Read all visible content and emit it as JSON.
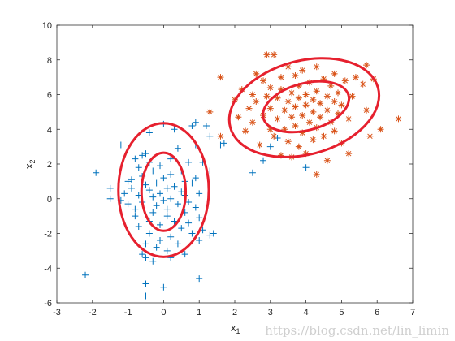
{
  "chart_data": {
    "type": "scatter",
    "title": "",
    "xlabel": "x",
    "xlabel_sub": "1",
    "ylabel": "x",
    "ylabel_sub": "2",
    "xlim": [
      -3,
      7
    ],
    "ylim": [
      -6,
      10
    ],
    "x_ticks": [
      -3,
      -2,
      -1,
      0,
      1,
      2,
      3,
      4,
      5,
      6,
      7
    ],
    "y_ticks": [
      -6,
      -4,
      -2,
      0,
      2,
      4,
      6,
      8,
      10
    ],
    "grid": false,
    "legend": "none",
    "series": [
      {
        "marker": "plus",
        "color": "#0072BD",
        "points": [
          [
            -2.2,
            -4.4
          ],
          [
            -1.9,
            1.5
          ],
          [
            -1.5,
            0.6
          ],
          [
            -1.5,
            0.0
          ],
          [
            -1.2,
            3.1
          ],
          [
            -1.2,
            -0.1
          ],
          [
            -1.1,
            0.3
          ],
          [
            -1.0,
            1.0
          ],
          [
            -1.0,
            -0.3
          ],
          [
            -0.9,
            1.1
          ],
          [
            -0.9,
            0.6
          ],
          [
            -0.8,
            2.3
          ],
          [
            -0.8,
            -0.6
          ],
          [
            -0.8,
            -1.0
          ],
          [
            -0.7,
            1.8
          ],
          [
            -0.7,
            0.2
          ],
          [
            -0.7,
            -1.6
          ],
          [
            -0.6,
            2.5
          ],
          [
            -0.6,
            1.3
          ],
          [
            -0.6,
            -0.2
          ],
          [
            -0.6,
            -3.2
          ],
          [
            -0.5,
            2.6
          ],
          [
            -0.5,
            0.8
          ],
          [
            -0.5,
            -2.6
          ],
          [
            -0.5,
            -3.4
          ],
          [
            -0.5,
            -4.9
          ],
          [
            -0.5,
            -5.6
          ],
          [
            -0.4,
            3.8
          ],
          [
            -0.4,
            2.1
          ],
          [
            -0.4,
            0.5
          ],
          [
            -0.4,
            -1.3
          ],
          [
            -0.4,
            -2.0
          ],
          [
            -0.3,
            1.6
          ],
          [
            -0.3,
            0.1
          ],
          [
            -0.3,
            -0.8
          ],
          [
            -0.3,
            -3.6
          ],
          [
            -0.2,
            0.9
          ],
          [
            -0.2,
            -0.4
          ],
          [
            -0.2,
            -2.8
          ],
          [
            -0.1,
            1.9
          ],
          [
            -0.1,
            0.3
          ],
          [
            -0.1,
            -1.5
          ],
          [
            -0.1,
            -2.4
          ],
          [
            0.0,
            4.3
          ],
          [
            0.0,
            1.2
          ],
          [
            0.0,
            -0.1
          ],
          [
            0.0,
            -5.1
          ],
          [
            0.1,
            0.6
          ],
          [
            0.1,
            -0.6
          ],
          [
            0.1,
            -1.0
          ],
          [
            0.1,
            -3.0
          ],
          [
            0.2,
            2.3
          ],
          [
            0.2,
            1.4
          ],
          [
            0.2,
            0.0
          ],
          [
            0.2,
            -2.2
          ],
          [
            0.2,
            -3.4
          ],
          [
            0.3,
            4.0
          ],
          [
            0.3,
            0.7
          ],
          [
            0.3,
            -1.3
          ],
          [
            0.4,
            2.9
          ],
          [
            0.4,
            -0.3
          ],
          [
            0.4,
            -2.6
          ],
          [
            0.5,
            1.6
          ],
          [
            0.5,
            0.4
          ],
          [
            0.5,
            -1.7
          ],
          [
            0.6,
            1.0
          ],
          [
            0.6,
            0.2
          ],
          [
            0.6,
            -0.8
          ],
          [
            0.6,
            -3.2
          ],
          [
            0.7,
            2.1
          ],
          [
            0.7,
            -0.2
          ],
          [
            0.7,
            -1.4
          ],
          [
            0.8,
            4.2
          ],
          [
            0.8,
            0.9
          ],
          [
            0.8,
            -2.0
          ],
          [
            0.9,
            4.4
          ],
          [
            0.9,
            3.1
          ],
          [
            0.9,
            1.2
          ],
          [
            0.9,
            -0.5
          ],
          [
            1.0,
            0.3
          ],
          [
            1.0,
            -1.1
          ],
          [
            1.0,
            -2.4
          ],
          [
            1.0,
            -4.6
          ],
          [
            1.1,
            2.1
          ],
          [
            1.1,
            -1.8
          ],
          [
            1.2,
            4.2
          ],
          [
            1.3,
            3.6
          ],
          [
            1.3,
            1.6
          ],
          [
            1.3,
            -2.1
          ],
          [
            1.4,
            -2.0
          ],
          [
            1.6,
            3.1
          ],
          [
            1.7,
            3.2
          ],
          [
            2.5,
            1.5
          ],
          [
            2.8,
            2.2
          ],
          [
            3.0,
            3.0
          ],
          [
            3.2,
            3.5
          ],
          [
            4.0,
            1.8
          ]
        ]
      },
      {
        "marker": "asterisk",
        "color": "#D95319",
        "points": [
          [
            1.3,
            5.0
          ],
          [
            1.6,
            3.6
          ],
          [
            1.6,
            7.0
          ],
          [
            2.0,
            5.7
          ],
          [
            2.1,
            4.7
          ],
          [
            2.2,
            6.3
          ],
          [
            2.3,
            3.9
          ],
          [
            2.4,
            5.2
          ],
          [
            2.5,
            6.0
          ],
          [
            2.5,
            4.4
          ],
          [
            2.6,
            7.2
          ],
          [
            2.6,
            5.6
          ],
          [
            2.7,
            3.1
          ],
          [
            2.8,
            6.8
          ],
          [
            2.8,
            4.8
          ],
          [
            2.9,
            8.3
          ],
          [
            2.9,
            5.9
          ],
          [
            3.0,
            4.0
          ],
          [
            3.0,
            6.4
          ],
          [
            3.0,
            5.2
          ],
          [
            3.1,
            8.3
          ],
          [
            3.1,
            3.6
          ],
          [
            3.2,
            5.8
          ],
          [
            3.2,
            4.6
          ],
          [
            3.3,
            7.0
          ],
          [
            3.3,
            6.3
          ],
          [
            3.3,
            2.5
          ],
          [
            3.4,
            5.1
          ],
          [
            3.4,
            4.0
          ],
          [
            3.5,
            7.6
          ],
          [
            3.5,
            5.6
          ],
          [
            3.5,
            3.3
          ],
          [
            3.6,
            6.1
          ],
          [
            3.6,
            4.7
          ],
          [
            3.6,
            2.4
          ],
          [
            3.7,
            7.1
          ],
          [
            3.7,
            5.3
          ],
          [
            3.7,
            4.2
          ],
          [
            3.8,
            6.5
          ],
          [
            3.8,
            5.8
          ],
          [
            3.8,
            3.0
          ],
          [
            3.9,
            7.4
          ],
          [
            3.9,
            4.8
          ],
          [
            3.9,
            3.8
          ],
          [
            4.0,
            6.0
          ],
          [
            4.0,
            5.4
          ],
          [
            4.0,
            2.6
          ],
          [
            4.1,
            6.7
          ],
          [
            4.1,
            4.4
          ],
          [
            4.2,
            5.7
          ],
          [
            4.2,
            5.0
          ],
          [
            4.2,
            3.4
          ],
          [
            4.3,
            7.6
          ],
          [
            4.3,
            6.2
          ],
          [
            4.3,
            4.1
          ],
          [
            4.3,
            1.4
          ],
          [
            4.4,
            5.5
          ],
          [
            4.4,
            4.7
          ],
          [
            4.5,
            6.9
          ],
          [
            4.5,
            3.6
          ],
          [
            4.6,
            5.9
          ],
          [
            4.6,
            5.1
          ],
          [
            4.6,
            2.2
          ],
          [
            4.7,
            6.5
          ],
          [
            4.7,
            4.4
          ],
          [
            4.8,
            7.2
          ],
          [
            4.8,
            5.6
          ],
          [
            4.8,
            3.9
          ],
          [
            4.9,
            6.1
          ],
          [
            4.9,
            4.9
          ],
          [
            5.0,
            5.4
          ],
          [
            5.0,
            3.2
          ],
          [
            5.1,
            6.8
          ],
          [
            5.2,
            4.6
          ],
          [
            5.2,
            2.6
          ],
          [
            5.3,
            5.9
          ],
          [
            5.4,
            7.0
          ],
          [
            5.6,
            6.6
          ],
          [
            5.7,
            7.7
          ],
          [
            5.7,
            5.1
          ],
          [
            5.8,
            3.6
          ],
          [
            5.9,
            6.9
          ],
          [
            6.1,
            4.0
          ],
          [
            6.6,
            4.6
          ]
        ]
      }
    ],
    "contours": {
      "color": "#E6202E",
      "ellipses": [
        {
          "cx": 0.0,
          "cy": 0.4,
          "a": 0.62,
          "b": 2.25,
          "deg": 0
        },
        {
          "cx": 0.0,
          "cy": 0.5,
          "a": 1.27,
          "b": 3.85,
          "deg": 0
        },
        {
          "cx": 4.0,
          "cy": 5.3,
          "a": 1.24,
          "b": 1.35,
          "deg": -15
        },
        {
          "cx": 3.95,
          "cy": 5.25,
          "a": 2.15,
          "b": 2.7,
          "deg": -15
        }
      ]
    }
  },
  "watermark": "https://blog.csdn.net/lin_limin"
}
